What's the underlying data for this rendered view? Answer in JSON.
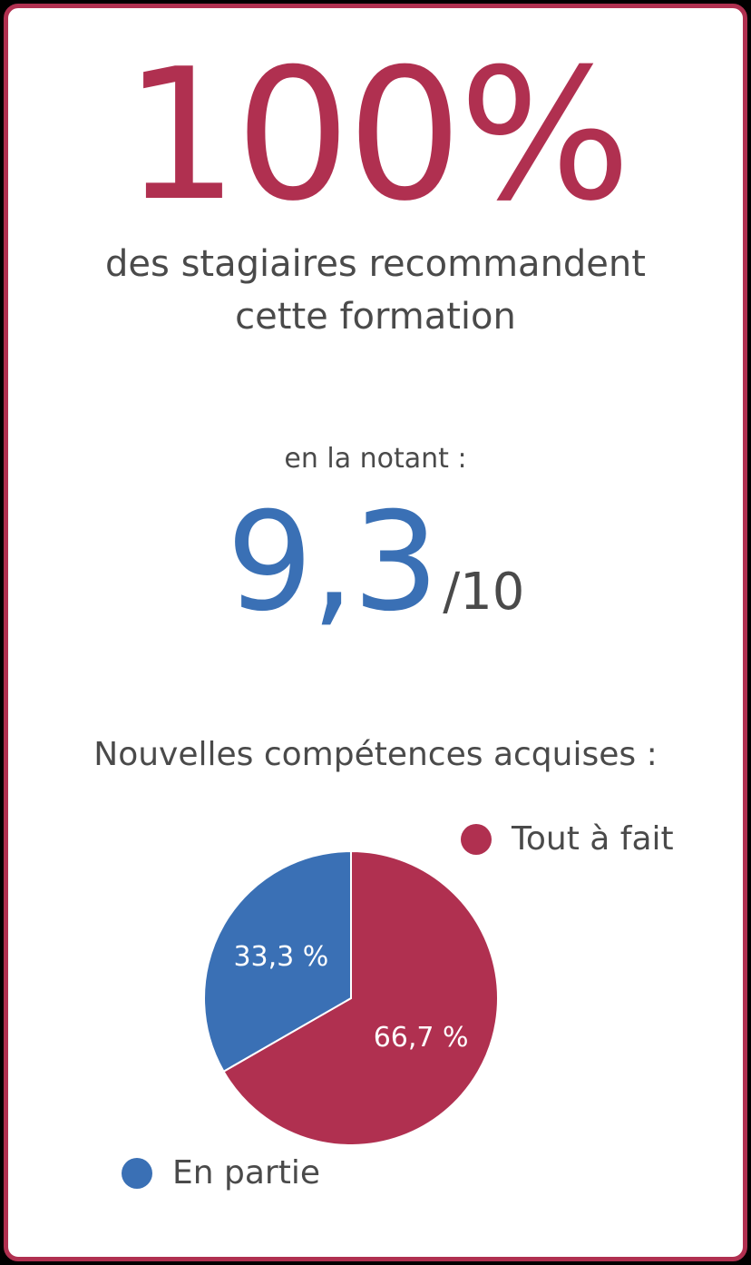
{
  "headline": {
    "value": "100%",
    "line1": "des stagiaires recommandent",
    "line2": "cette formation"
  },
  "rating": {
    "label": "en la notant :",
    "value": "9,3",
    "max": "/10"
  },
  "skills": {
    "title": "Nouvelles compétences acquises :"
  },
  "colors": {
    "accent_red": "#b03050",
    "accent_blue": "#3a70b5",
    "text_gray": "#4a4a4a"
  },
  "chart_data": {
    "type": "pie",
    "title": "Nouvelles compétences acquises :",
    "slices": [
      {
        "label": "Tout à fait",
        "value": 66.7,
        "display": "66,7 %",
        "color": "#b03050"
      },
      {
        "label": "En partie",
        "value": 33.3,
        "display": "33,3 %",
        "color": "#3a70b5"
      }
    ],
    "legend_placement": "split-top-right-bottom-left"
  }
}
